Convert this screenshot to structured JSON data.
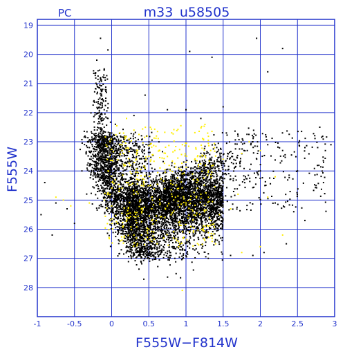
{
  "chart_data": {
    "type": "scatter",
    "title": "m33_u58505",
    "subtitle": "PC",
    "xlabel": "F555W−F814W",
    "ylabel": "F555W",
    "xlim": [
      -1,
      3
    ],
    "ylim": [
      29,
      18.8
    ],
    "y_inverted": true,
    "grid": true,
    "x_ticks": [
      -1,
      -0.5,
      0,
      0.5,
      1,
      1.5,
      2,
      2.5,
      3
    ],
    "x_tick_labels": [
      "-1",
      "-0.5",
      "0",
      "0.5",
      "1",
      "1.5",
      "2",
      "2.5",
      "3"
    ],
    "y_ticks": [
      19,
      20,
      21,
      22,
      23,
      24,
      25,
      26,
      27,
      28
    ],
    "y_tick_labels": [
      "19",
      "20",
      "21",
      "22",
      "23",
      "24",
      "25",
      "26",
      "27",
      "28"
    ],
    "colors": {
      "axis": "#2233cc",
      "grid": "#2233cc",
      "points_main": "#000000",
      "points_highlight": "#ffee00"
    },
    "series": [
      {
        "color": "#000000",
        "points": [
          [
            -0.15,
            19.45
          ],
          [
            -0.2,
            20.2
          ],
          [
            -0.05,
            19.85
          ],
          [
            -0.1,
            20.5
          ],
          [
            -0.15,
            20.8
          ],
          [
            -0.12,
            21.2
          ],
          [
            -0.08,
            21.6
          ],
          [
            -0.1,
            21.9
          ],
          [
            -0.05,
            22.2
          ],
          [
            -0.1,
            22.5
          ],
          [
            0.0,
            22.7
          ],
          [
            -0.15,
            22.9
          ],
          [
            0.05,
            22.4
          ],
          [
            0.3,
            22.1
          ],
          [
            0.45,
            21.4
          ],
          [
            0.75,
            21.9
          ],
          [
            1.0,
            21.9
          ],
          [
            1.2,
            22.2
          ],
          [
            1.5,
            21.8
          ],
          [
            1.05,
            19.9
          ],
          [
            1.35,
            20.1
          ],
          [
            1.95,
            19.45
          ],
          [
            2.1,
            20.6
          ],
          [
            2.3,
            19.8
          ],
          [
            2.8,
            22.5
          ],
          [
            2.95,
            23.1
          ],
          [
            2.6,
            23.2
          ],
          [
            2.3,
            23.3
          ],
          [
            2.1,
            23.1
          ],
          [
            1.9,
            23.0
          ],
          [
            1.7,
            22.8
          ],
          [
            2.5,
            24.0
          ],
          [
            2.75,
            24.5
          ],
          [
            2.85,
            24.4
          ],
          [
            2.0,
            24.0
          ],
          [
            1.8,
            24.2
          ],
          [
            2.2,
            25.1
          ],
          [
            2.45,
            25.4
          ],
          [
            2.6,
            25.7
          ],
          [
            2.35,
            26.5
          ],
          [
            -0.4,
            24.0
          ],
          [
            -0.5,
            25.8
          ],
          [
            -0.6,
            25.3
          ],
          [
            -0.75,
            25.1
          ],
          [
            -0.9,
            24.4
          ],
          [
            -0.95,
            25.5
          ],
          [
            -0.8,
            26.2
          ],
          [
            1.1,
            27.4
          ],
          [
            1.3,
            27.0
          ],
          [
            1.6,
            26.9
          ],
          [
            1.9,
            26.9
          ],
          [
            2.05,
            26.8
          ],
          [
            0.85,
            27.0
          ],
          [
            0.6,
            26.8
          ]
        ]
      },
      {
        "color": "#ffee00",
        "points": [
          [
            0.2,
            22.2
          ],
          [
            0.3,
            22.6
          ],
          [
            0.15,
            23.0
          ],
          [
            0.35,
            23.3
          ],
          [
            0.5,
            23.5
          ],
          [
            0.45,
            23.9
          ],
          [
            0.2,
            24.4
          ],
          [
            0.1,
            24.7
          ],
          [
            0.3,
            24.8
          ],
          [
            0.55,
            25.0
          ],
          [
            0.75,
            25.2
          ],
          [
            0.9,
            24.6
          ],
          [
            0.95,
            24.1
          ],
          [
            1.1,
            24.3
          ],
          [
            1.2,
            24.8
          ],
          [
            1.0,
            25.1
          ],
          [
            0.8,
            25.5
          ],
          [
            0.6,
            25.7
          ],
          [
            0.4,
            25.3
          ],
          [
            0.2,
            25.6
          ],
          [
            0.0,
            25.2
          ],
          [
            -0.1,
            25.0
          ],
          [
            0.05,
            24.3
          ],
          [
            -0.3,
            25.1
          ],
          [
            -0.55,
            25.2
          ],
          [
            -0.65,
            25.0
          ],
          [
            -0.75,
            24.9
          ],
          [
            0.5,
            26.0
          ],
          [
            0.3,
            26.2
          ],
          [
            0.7,
            26.3
          ],
          [
            0.9,
            26.6
          ],
          [
            1.1,
            26.1
          ],
          [
            1.3,
            25.9
          ],
          [
            1.45,
            25.5
          ],
          [
            1.6,
            25.3
          ],
          [
            1.7,
            24.8
          ],
          [
            1.3,
            24.0
          ],
          [
            1.5,
            23.6
          ],
          [
            1.75,
            23.4
          ],
          [
            1.85,
            23.0
          ],
          [
            2.0,
            23.3
          ],
          [
            2.2,
            24.2
          ],
          [
            2.1,
            24.9
          ],
          [
            2.3,
            26.2
          ],
          [
            2.0,
            26.6
          ],
          [
            1.75,
            26.8
          ],
          [
            1.05,
            26.1
          ],
          [
            0.95,
            28.1
          ],
          [
            0.65,
            23.9
          ],
          [
            0.85,
            23.3
          ],
          [
            0.25,
            23.8
          ],
          [
            -0.05,
            24.8
          ],
          [
            0.4,
            24.5
          ],
          [
            1.0,
            23.7
          ],
          [
            1.25,
            25.4
          ],
          [
            0.15,
            25.9
          ]
        ]
      }
    ]
  }
}
